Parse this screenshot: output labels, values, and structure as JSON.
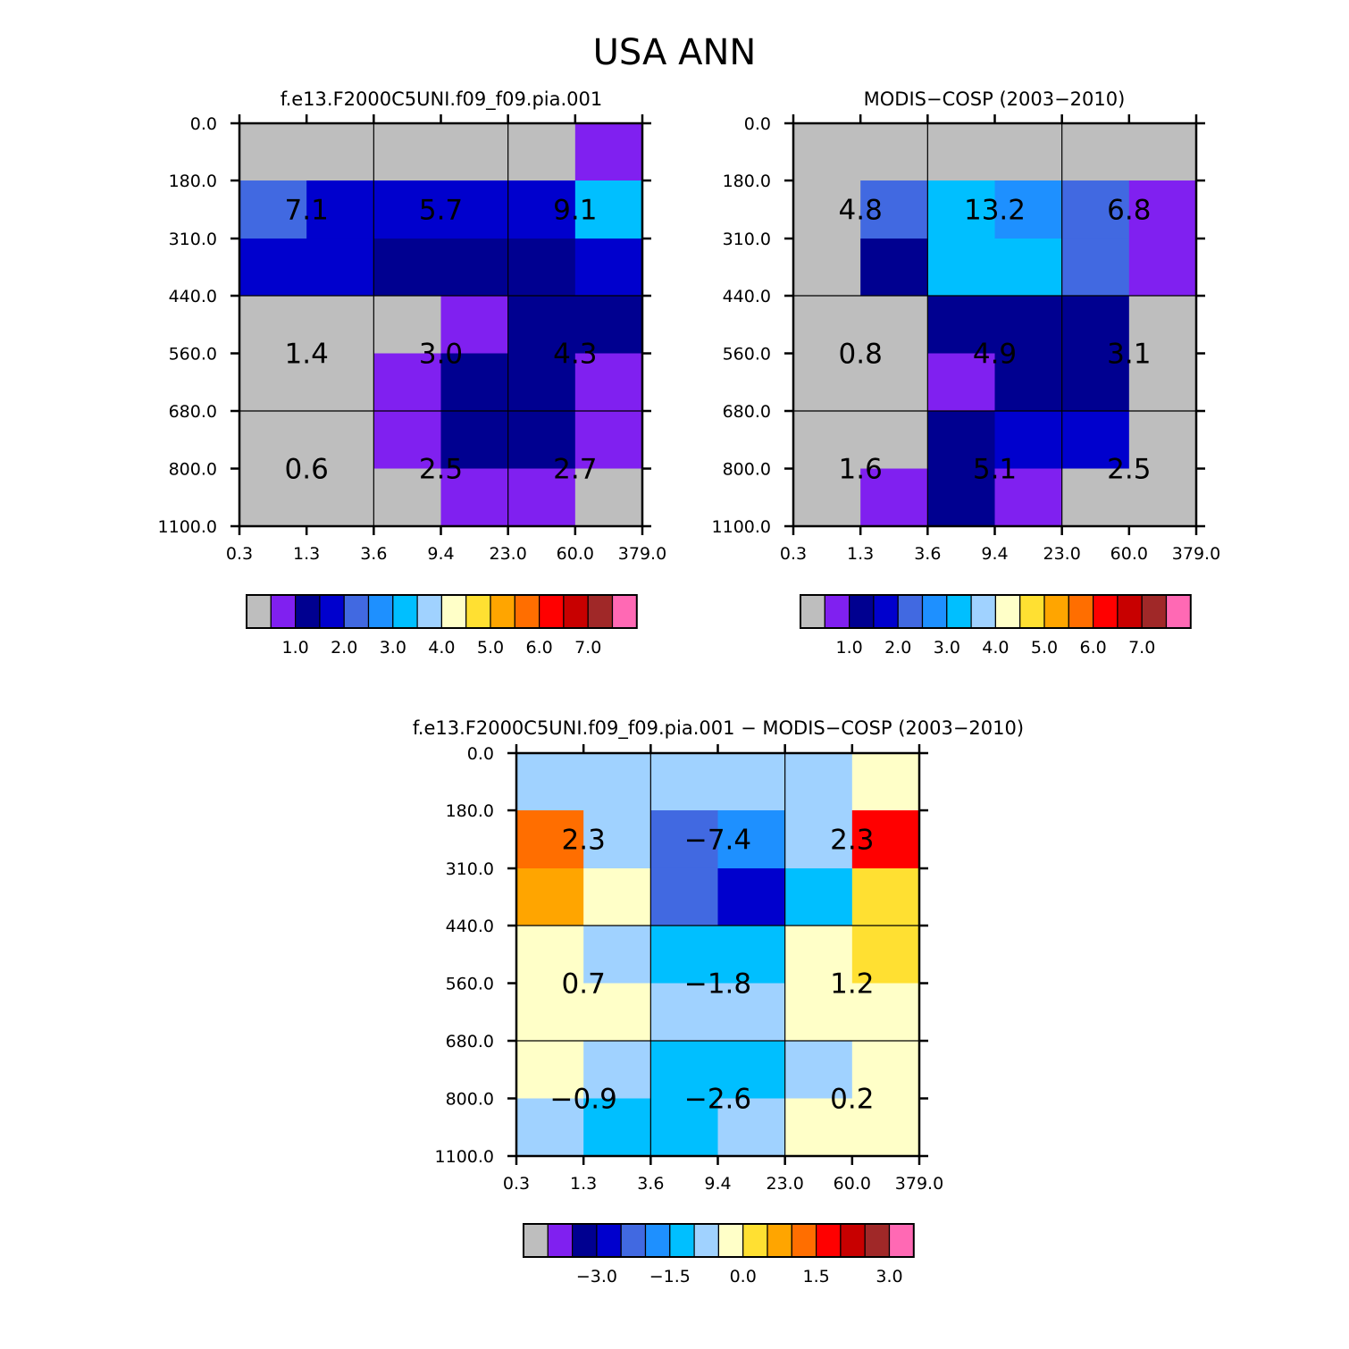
{
  "figure_title": "USA ANN",
  "colors": {
    "raw": [
      "#bebebe",
      "#8020f0",
      "#000090",
      "#0000cd",
      "#4169e1",
      "#1e90ff",
      "#00bfff",
      "#a0d2ff",
      "#ffffc8",
      "#ffe032",
      "#ffa500",
      "#ff6e00",
      "#ff0000",
      "#c80000",
      "#a02828",
      "#ff69b4"
    ]
  },
  "chart_data": [
    {
      "type": "heatmap",
      "title": "f.e13.F2000C5UNI.f09_f09.pia.001",
      "x_tick_labels": [
        "0.3",
        "1.3",
        "3.6",
        "9.4",
        "23.0",
        "60.0",
        "379.0"
      ],
      "y_tick_labels": [
        "0.0",
        "180.0",
        "310.0",
        "440.0",
        "560.0",
        "680.0",
        "800.0",
        "1100.0"
      ],
      "cell_color_index": [
        [
          0,
          0,
          0,
          0,
          0,
          1
        ],
        [
          4,
          3,
          3,
          3,
          3,
          6
        ],
        [
          3,
          3,
          2,
          2,
          2,
          3
        ],
        [
          0,
          0,
          0,
          1,
          2,
          2
        ],
        [
          0,
          0,
          1,
          2,
          2,
          1
        ],
        [
          0,
          0,
          1,
          2,
          2,
          1
        ],
        [
          0,
          0,
          0,
          1,
          1,
          0
        ]
      ],
      "region_values": [
        [
          "7.1",
          "5.7",
          "9.1"
        ],
        [
          "1.4",
          "3.0",
          "4.3"
        ],
        [
          "0.6",
          "2.5",
          "2.7"
        ]
      ],
      "colorbar": {
        "labels": [
          "1.0",
          "2.0",
          "3.0",
          "4.0",
          "5.0",
          "6.0",
          "7.0"
        ],
        "label_box_index": [
          1,
          3,
          5,
          7,
          9,
          11,
          13
        ]
      }
    },
    {
      "type": "heatmap",
      "title": "MODIS−COSP (2003−2010)",
      "x_tick_labels": [
        "0.3",
        "1.3",
        "3.6",
        "9.4",
        "23.0",
        "60.0",
        "379.0"
      ],
      "y_tick_labels": [
        "0.0",
        "180.0",
        "310.0",
        "440.0",
        "560.0",
        "680.0",
        "800.0",
        "1100.0"
      ],
      "cell_color_index": [
        [
          0,
          0,
          0,
          0,
          0,
          0
        ],
        [
          0,
          4,
          6,
          5,
          4,
          1
        ],
        [
          0,
          2,
          6,
          6,
          4,
          1
        ],
        [
          0,
          0,
          2,
          2,
          2,
          0
        ],
        [
          0,
          0,
          1,
          2,
          2,
          0
        ],
        [
          0,
          0,
          2,
          3,
          3,
          0
        ],
        [
          0,
          1,
          2,
          1,
          0,
          0
        ]
      ],
      "region_values": [
        [
          "4.8",
          "13.2",
          "6.8"
        ],
        [
          "0.8",
          "4.9",
          "3.1"
        ],
        [
          "1.6",
          "5.1",
          "2.5"
        ]
      ],
      "colorbar": {
        "labels": [
          "1.0",
          "2.0",
          "3.0",
          "4.0",
          "5.0",
          "6.0",
          "7.0"
        ],
        "label_box_index": [
          1,
          3,
          5,
          7,
          9,
          11,
          13
        ]
      }
    },
    {
      "type": "heatmap",
      "title": "f.e13.F2000C5UNI.f09_f09.pia.001 − MODIS−COSP (2003−2010)",
      "x_tick_labels": [
        "0.3",
        "1.3",
        "3.6",
        "9.4",
        "23.0",
        "60.0",
        "379.0"
      ],
      "y_tick_labels": [
        "0.0",
        "180.0",
        "310.0",
        "440.0",
        "560.0",
        "680.0",
        "800.0",
        "1100.0"
      ],
      "cell_color_index": [
        [
          7,
          7,
          7,
          7,
          7,
          8
        ],
        [
          11,
          7,
          4,
          5,
          7,
          12
        ],
        [
          10,
          8,
          4,
          3,
          6,
          9
        ],
        [
          8,
          7,
          6,
          6,
          8,
          9
        ],
        [
          8,
          8,
          7,
          7,
          8,
          8
        ],
        [
          8,
          7,
          6,
          6,
          7,
          8
        ],
        [
          7,
          6,
          6,
          7,
          8,
          8
        ]
      ],
      "region_values": [
        [
          "2.3",
          "−7.4",
          "2.3"
        ],
        [
          "0.7",
          "−1.8",
          "1.2"
        ],
        [
          "−0.9",
          "−2.6",
          "0.2"
        ]
      ],
      "colorbar": {
        "labels": [
          "−3.0",
          "−1.5",
          "0.0",
          "1.5",
          "3.0"
        ],
        "label_box_index": [
          2,
          5,
          8,
          11,
          14
        ]
      }
    }
  ]
}
